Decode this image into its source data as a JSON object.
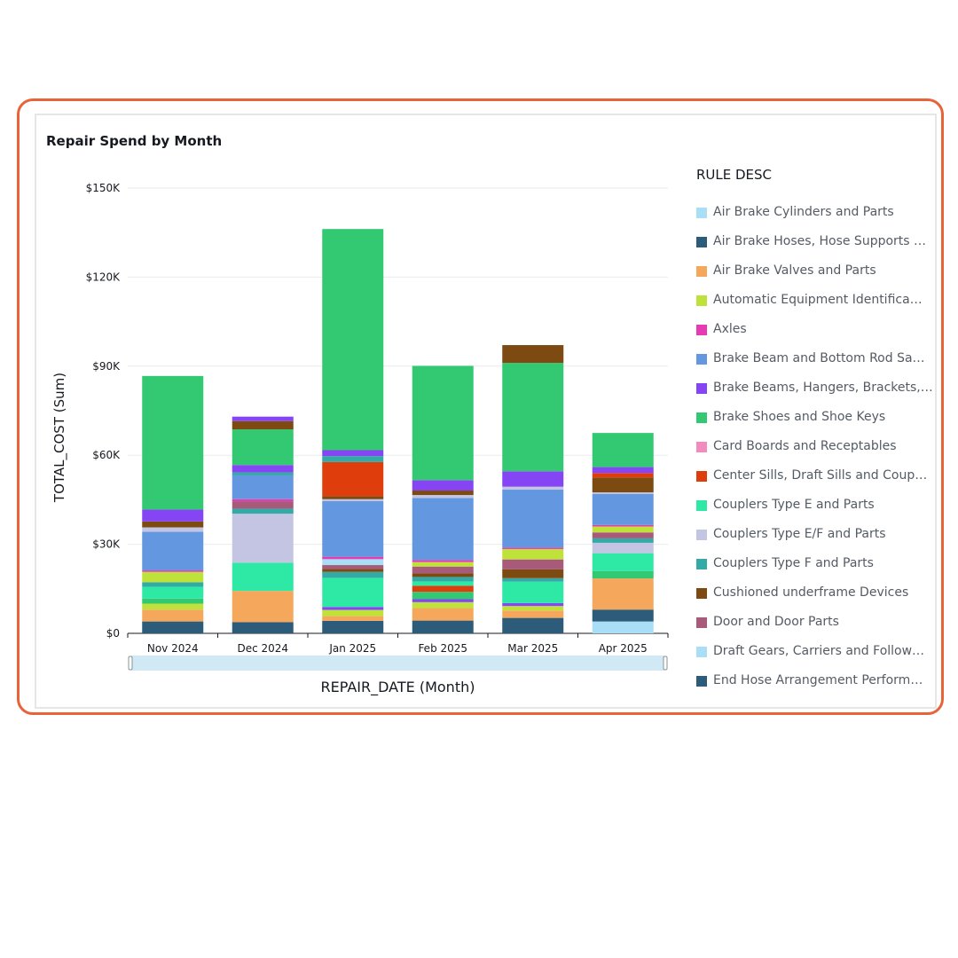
{
  "chart_data": {
    "type": "bar",
    "stacked": true,
    "title": "Repair Spend by Month",
    "xlabel": "REPAIR_DATE (Month)",
    "ylabel": "TOTAL_COST (Sum)",
    "ylim": [
      0,
      150000
    ],
    "yticks": [
      "$0",
      "$30K",
      "$60K",
      "$90K",
      "$120K",
      "$150K"
    ],
    "ytick_values": [
      0,
      30000,
      60000,
      90000,
      120000,
      150000
    ],
    "grid": true,
    "legend_title": "RULE DESC",
    "legend_position": "right",
    "categories": [
      "Nov 2024",
      "Dec 2024",
      "Jan 2025",
      "Feb 2025",
      "Mar 2025",
      "Apr 2025"
    ],
    "series": [
      {
        "name": "Air Brake Cylinders and Parts",
        "color": "#a9def7",
        "values": [
          0,
          0,
          0,
          0,
          0,
          4000
        ]
      },
      {
        "name": "Air Brake Hoses, Hose Supports and Angle Cocks",
        "color": "#2d5b7a",
        "values": [
          4000,
          3800,
          4200,
          4300,
          5200,
          4000
        ]
      },
      {
        "name": "Air Brake Valves and Parts",
        "color": "#f5a85c",
        "values": [
          4000,
          10500,
          1600,
          4200,
          2500,
          10500
        ]
      },
      {
        "name": "Automatic Equipment Identification Tags",
        "color": "#bfe23a",
        "values": [
          2000,
          0,
          2100,
          2000,
          1500,
          0
        ]
      },
      {
        "name": "Axles",
        "color": "#e63bb2",
        "values": [
          0,
          0,
          0,
          0,
          0,
          0
        ]
      },
      {
        "name": "Brake Beam and Bottom Rod Safety Supports",
        "color": "#6397e0",
        "values": [
          0,
          0,
          0,
          0,
          0,
          0
        ]
      },
      {
        "name": "Brake Beams, Hangers, Brackets, Pins and Wear Plates",
        "color": "#8645f5",
        "values": [
          0,
          0,
          1000,
          1000,
          1000,
          0
        ]
      },
      {
        "name": "Brake Shoes and Shoe Keys",
        "color": "#33c972",
        "values": [
          1700,
          0,
          0,
          2500,
          0,
          2500
        ]
      },
      {
        "name": "Card Boards and Receptables",
        "color": "#f28bbe",
        "values": [
          0,
          0,
          0,
          0,
          0,
          0
        ]
      },
      {
        "name": "Center Sills, Draft Sills and Coupler Carriers",
        "color": "#e03d0d",
        "values": [
          0,
          0,
          0,
          2000,
          0,
          0
        ]
      },
      {
        "name": "Couplers Type E and Parts",
        "color": "#2ee8a5",
        "values": [
          4000,
          9500,
          9800,
          1500,
          7200,
          6000
        ]
      },
      {
        "name": "Couplers Type E/F and Parts",
        "color": "#c3c5e3",
        "values": [
          0,
          16500,
          0,
          0,
          0,
          3500
        ]
      },
      {
        "name": "Couplers Type F and Parts",
        "color": "#34aaa6",
        "values": [
          1500,
          1700,
          2000,
          1500,
          1200,
          1500
        ]
      },
      {
        "name": "Cushioned underframe Devices",
        "color": "#7d4a12",
        "values": [
          0,
          0,
          1000,
          1200,
          3000,
          0
        ]
      },
      {
        "name": "Door and Door Parts",
        "color": "#a85a7b",
        "values": [
          0,
          2500,
          1300,
          2300,
          3300,
          2000
        ]
      },
      {
        "name": "Draft Gears, Carriers and Followers",
        "color": "#a9def7",
        "values": [
          0,
          0,
          2000,
          0,
          0,
          0
        ]
      },
      {
        "name": "End Hose Arrangement Performance",
        "color": "#2d5b7a",
        "values": [
          0,
          0,
          0,
          0,
          0,
          0
        ]
      },
      {
        "name": "Air Brake Valves and Parts ",
        "color": "#f5a85c",
        "values": [
          0,
          0,
          0,
          0,
          0,
          0
        ]
      },
      {
        "name": "Automatic Equipment Identification Tags ",
        "color": "#bfe23a",
        "values": [
          3500,
          0,
          0,
          1500,
          3500,
          2000
        ]
      },
      {
        "name": "Axles ",
        "color": "#e63bb2",
        "values": [
          500,
          700,
          800,
          700,
          500,
          500
        ]
      },
      {
        "name": "Brake Beam and Bottom Rod Safety Supports ",
        "color": "#6397e0",
        "values": [
          13000,
          8000,
          18800,
          20900,
          19500,
          10500
        ]
      },
      {
        "name": "Couplers Type E/F and Parts ",
        "color": "#c3c5e3",
        "values": [
          1500,
          0,
          600,
          1000,
          1000,
          500
        ]
      },
      {
        "name": "Cushioned underframe Devices ",
        "color": "#7d4a12",
        "values": [
          2000,
          0,
          1000,
          1500,
          0,
          5000
        ]
      },
      {
        "name": "Center Sills, Draft Sills and Coupler Carriers ",
        "color": "#e03d0d",
        "values": [
          0,
          0,
          11500,
          0,
          0,
          1500
        ]
      },
      {
        "name": "Couplers Type F and Parts ",
        "color": "#34aaa6",
        "values": [
          0,
          1000,
          2000,
          0,
          0,
          0
        ]
      },
      {
        "name": "Brake Beams, Hangers, Brackets, Pins and Wear Plates ",
        "color": "#8645f5",
        "values": [
          4000,
          2500,
          2000,
          3500,
          5200,
          2000
        ]
      },
      {
        "name": "Brake Shoes and Shoe Keys ",
        "color": "#33c972",
        "values": [
          45000,
          12000,
          74500,
          38500,
          36500,
          11500
        ]
      },
      {
        "name": "Cushioned underframe Devices  ",
        "color": "#7d4a12",
        "values": [
          0,
          2800,
          0,
          0,
          6000,
          0
        ]
      },
      {
        "name": "Brake Beams, Hangers, Brackets, Pins and Wear Plates  ",
        "color": "#8645f5",
        "values": [
          0,
          1500,
          0,
          0,
          0,
          0
        ]
      }
    ]
  },
  "legend_items": [
    {
      "label": "Air Brake Cylinders and Parts",
      "color": "#a9def7"
    },
    {
      "label": "Air Brake Hoses, Hose Supports …",
      "color": "#2d5b7a"
    },
    {
      "label": "Air Brake Valves and Parts",
      "color": "#f5a85c"
    },
    {
      "label": "Automatic Equipment Identifica…",
      "color": "#bfe23a"
    },
    {
      "label": "Axles",
      "color": "#e63bb2"
    },
    {
      "label": "Brake Beam and Bottom Rod Sa…",
      "color": "#6397e0"
    },
    {
      "label": "Brake Beams, Hangers, Brackets,…",
      "color": "#8645f5"
    },
    {
      "label": "Brake Shoes and Shoe Keys",
      "color": "#33c972"
    },
    {
      "label": "Card Boards and Receptables",
      "color": "#f28bbe"
    },
    {
      "label": "Center Sills, Draft Sills and Coup…",
      "color": "#e03d0d"
    },
    {
      "label": "Couplers Type E and Parts",
      "color": "#2ee8a5"
    },
    {
      "label": "Couplers Type E/F and Parts",
      "color": "#c3c5e3"
    },
    {
      "label": "Couplers Type F and Parts",
      "color": "#34aaa6"
    },
    {
      "label": "Cushioned underframe Devices",
      "color": "#7d4a12"
    },
    {
      "label": "Door and Door Parts",
      "color": "#a85a7b"
    },
    {
      "label": "Draft Gears, Carriers and Follow…",
      "color": "#a9def7"
    },
    {
      "label": "End Hose Arrangement Perform…",
      "color": "#2d5b7a"
    }
  ],
  "colors": {
    "frame_border": "#e8623a",
    "grid": "#e9ebed",
    "axis": "#16191f",
    "scrollbar": "#d1e8f5"
  }
}
